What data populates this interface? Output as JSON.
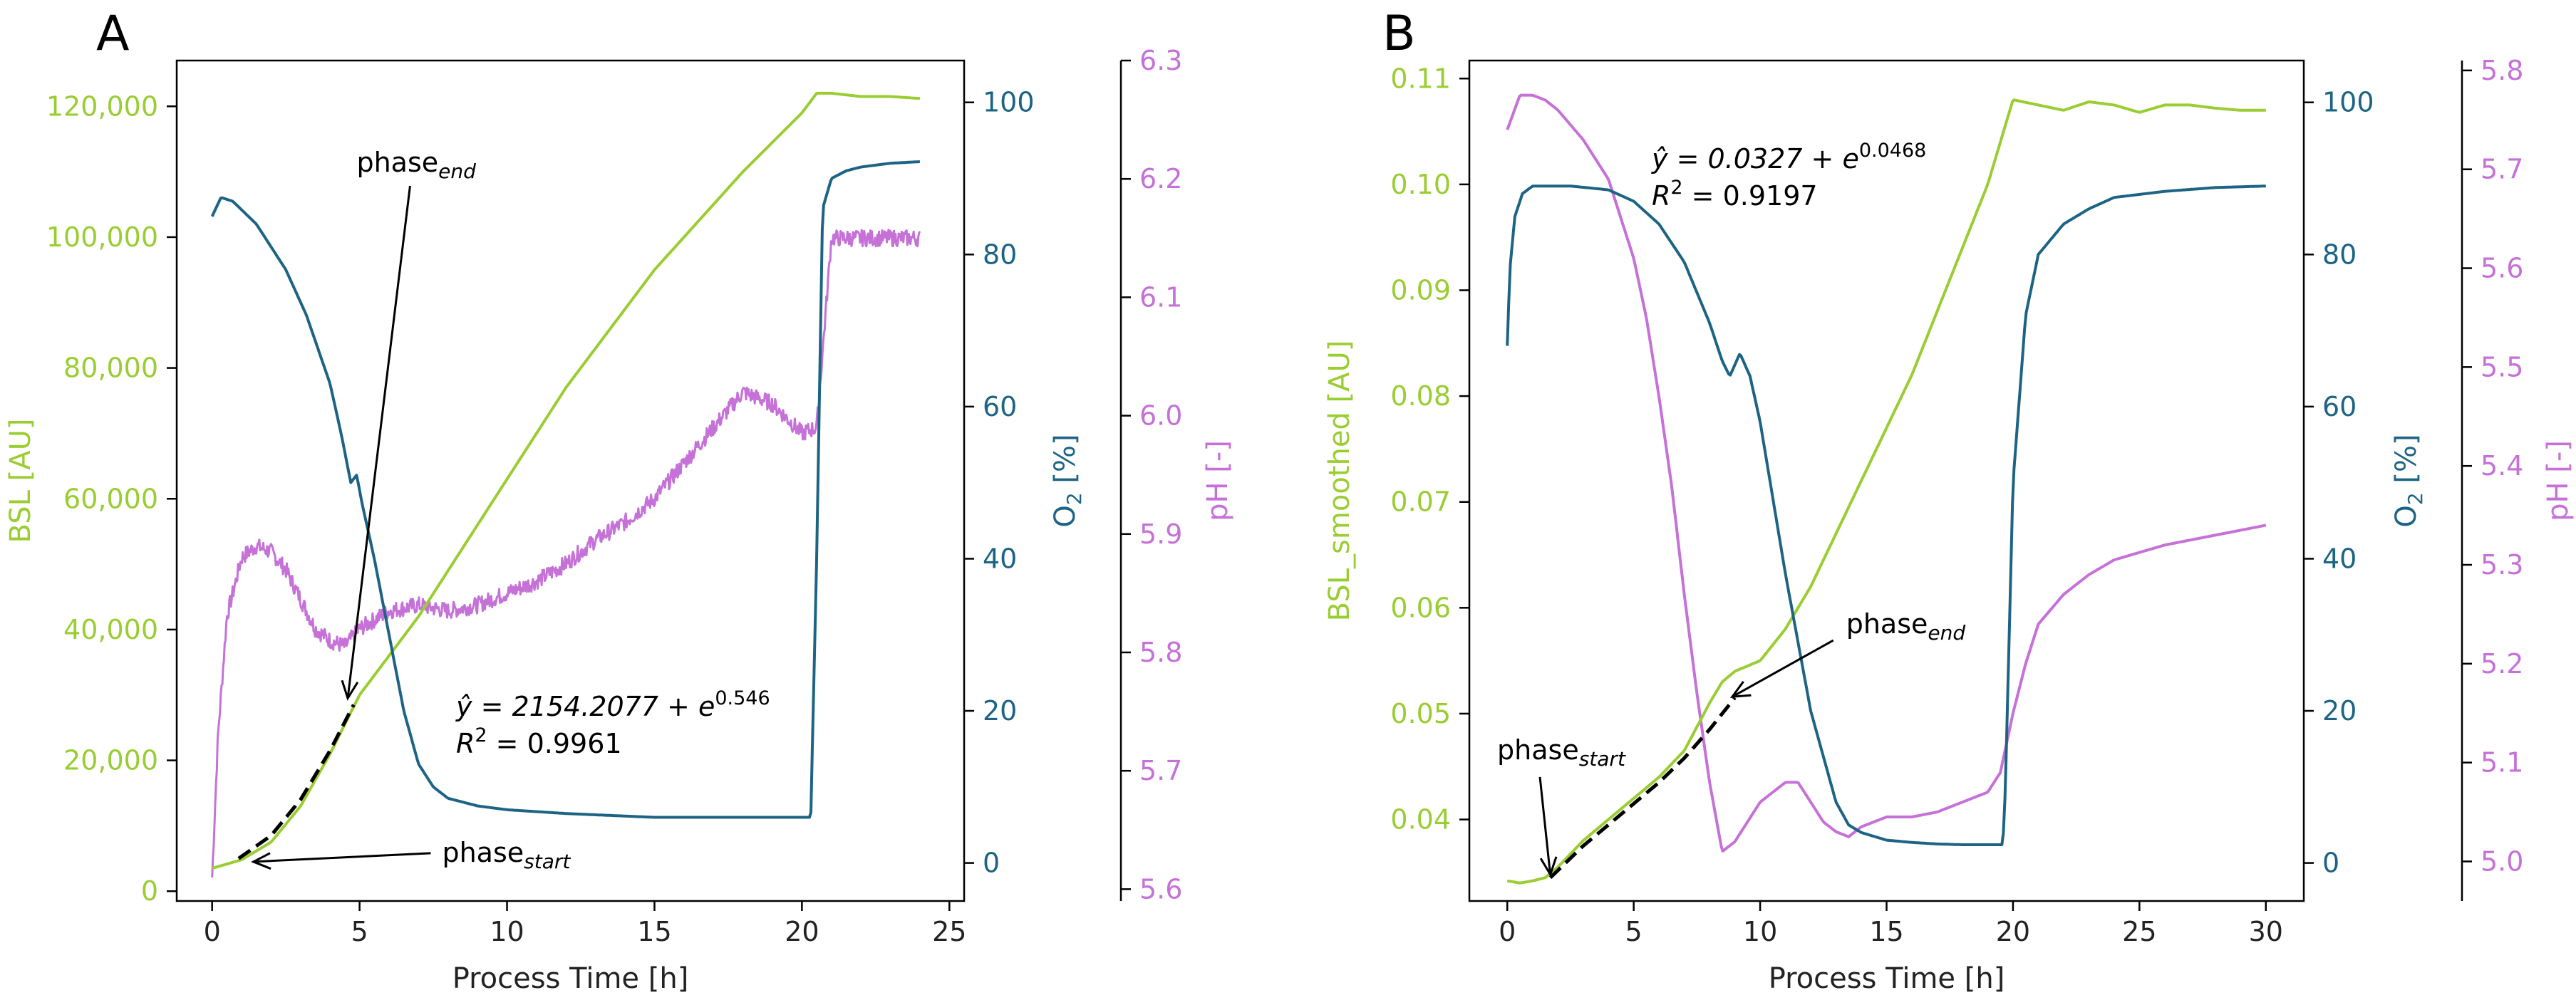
{
  "colors": {
    "bsl": "#9acd32",
    "o2": "#1d6484",
    "ph": "#c571d8",
    "black": "#000000"
  },
  "chart_data": [
    {
      "panel": "A",
      "type": "line",
      "xlabel": "Process Time [h]",
      "xlim": [
        -1.2,
        25.5
      ],
      "xticks": [
        0,
        5,
        10,
        15,
        20,
        25
      ],
      "axes": {
        "bsl": {
          "label": "BSL [AU]",
          "lim": [
            -1500,
            127000
          ],
          "ticks": [
            0,
            20000,
            40000,
            60000,
            80000,
            100000,
            120000
          ],
          "tick_labels": [
            "0",
            "20,000",
            "40,000",
            "60,000",
            "80,000",
            "100,000",
            "120,000"
          ]
        },
        "o2": {
          "label_main": "O",
          "label_sub": "2",
          "label_tail": " [%]",
          "lim": [
            -5,
            105.5
          ],
          "ticks": [
            0,
            20,
            40,
            60,
            80,
            100
          ],
          "tick_labels": [
            "0",
            "20",
            "40",
            "60",
            "80",
            "100"
          ]
        },
        "ph": {
          "label": "pH [-]",
          "lim": [
            5.59,
            6.3
          ],
          "ticks": [
            5.6,
            5.7,
            5.8,
            5.9,
            6.0,
            6.1,
            6.2,
            6.3
          ],
          "tick_labels": [
            "5.6",
            "5.7",
            "5.8",
            "5.9",
            "6.0",
            "6.1",
            "6.2",
            "6.3"
          ]
        }
      },
      "series": [
        {
          "axis": "bsl",
          "color": "bsl",
          "x": [
            0,
            1,
            2,
            3,
            4,
            5,
            6,
            7,
            8,
            9,
            10,
            11,
            12,
            13,
            14,
            15,
            16,
            17,
            18,
            19,
            20,
            20.5,
            21,
            22,
            23,
            24
          ],
          "y": [
            3500,
            4800,
            7500,
            13000,
            21000,
            30000,
            36000,
            42000,
            49000,
            56000,
            63000,
            70000,
            77000,
            83000,
            89000,
            95000,
            100000,
            105000,
            110000,
            114500,
            119000,
            122000,
            122000,
            121500,
            121500,
            121200
          ],
          "noise": 0
        },
        {
          "axis": "o2",
          "color": "o2",
          "x": [
            0,
            0.3,
            0.7,
            1.5,
            2.5,
            3.2,
            4.0,
            4.4,
            4.7,
            4.9,
            5.1,
            5.5,
            6.0,
            6.5,
            7.0,
            7.5,
            8.0,
            9,
            10,
            12,
            15,
            18,
            20.3,
            20.5,
            20.7,
            21,
            21.5,
            22,
            23,
            24
          ],
          "y": [
            85,
            87.5,
            87,
            84,
            78,
            72,
            63,
            56,
            50,
            51,
            47,
            40,
            30,
            20,
            13,
            10,
            8.5,
            7.5,
            7,
            6.5,
            6,
            6,
            6,
            40,
            86,
            90,
            91,
            91.5,
            92,
            92.2
          ],
          "noise": 0
        },
        {
          "axis": "ph",
          "color": "ph",
          "x": [
            0,
            0.2,
            0.5,
            1.0,
            1.5,
            2.0,
            2.5,
            3,
            3.5,
            4,
            4.5,
            5,
            6,
            7,
            8,
            9,
            10,
            11,
            12,
            13,
            14,
            15,
            16,
            17,
            18,
            19,
            20,
            20.5,
            21,
            22,
            23,
            24
          ],
          "y": [
            5.61,
            5.73,
            5.83,
            5.88,
            5.89,
            5.885,
            5.87,
            5.845,
            5.82,
            5.81,
            5.805,
            5.82,
            5.835,
            5.84,
            5.835,
            5.84,
            5.85,
            5.86,
            5.875,
            5.895,
            5.91,
            5.93,
            5.96,
            5.99,
            6.02,
            6.01,
            5.985,
            5.99,
            6.15,
            6.15,
            6.15,
            6.15
          ],
          "noise": 0.007
        }
      ],
      "fit": {
        "axis": "bsl",
        "x": [
          0.9,
          2,
          3,
          4,
          4.8
        ],
        "y": [
          5000,
          8500,
          14000,
          21500,
          28500
        ]
      },
      "annotations": [
        {
          "key": "phase_end",
          "text": "phase",
          "sub": "end",
          "text_x": 4.9,
          "text_y": 110000,
          "arrow_x": 4.6,
          "arrow_y": 29500
        },
        {
          "key": "phase_start",
          "text": "phase",
          "sub": "start",
          "text_x": 7.8,
          "text_y": 4500,
          "arrow_x": 1.4,
          "arrow_y": 4500
        }
      ],
      "equation": {
        "line1": "ŷ = 2154.2077 + e",
        "line1_exp": "0.546",
        "line2": "R",
        "line2_sup": "2",
        "line2_tail": " = 0.9961"
      }
    },
    {
      "panel": "B",
      "type": "line",
      "xlabel": "Process Time [h]",
      "xlim": [
        -1.5,
        31.5
      ],
      "xticks": [
        0,
        5,
        10,
        15,
        20,
        25,
        30
      ],
      "axes": {
        "bsl": {
          "label": "BSL_smoothed [AU]",
          "lim": [
            0.0323,
            0.1117
          ],
          "ticks": [
            0.04,
            0.05,
            0.06,
            0.07,
            0.08,
            0.09,
            0.1,
            0.11
          ],
          "tick_labels": [
            "0.04",
            "0.05",
            "0.06",
            "0.07",
            "0.08",
            "0.09",
            "0.10",
            "0.11"
          ]
        },
        "o2": {
          "label_main": "O",
          "label_sub": "2",
          "label_tail": " [%]",
          "lim": [
            -5,
            105.5
          ],
          "ticks": [
            0,
            20,
            40,
            60,
            80,
            100
          ],
          "tick_labels": [
            "0",
            "20",
            "40",
            "60",
            "80",
            "100"
          ]
        },
        "ph": {
          "label": "pH [-]",
          "lim": [
            4.96,
            5.81
          ],
          "ticks": [
            5.0,
            5.1,
            5.2,
            5.3,
            5.4,
            5.5,
            5.6,
            5.7,
            5.8
          ],
          "tick_labels": [
            "5.0",
            "5.1",
            "5.2",
            "5.3",
            "5.4",
            "5.5",
            "5.6",
            "5.7",
            "5.8"
          ]
        }
      },
      "series": [
        {
          "axis": "bsl",
          "color": "bsl",
          "x": [
            0,
            0.5,
            1,
            1.5,
            2,
            3,
            4,
            5,
            6,
            7,
            8,
            8.5,
            9,
            10,
            11,
            12,
            13,
            14,
            15,
            16,
            17,
            18,
            19,
            19.5,
            20,
            21,
            22,
            23,
            24,
            25,
            26,
            27,
            28,
            29,
            30
          ],
          "y": [
            0.0342,
            0.034,
            0.0342,
            0.0345,
            0.0355,
            0.038,
            0.04,
            0.042,
            0.044,
            0.0465,
            0.051,
            0.053,
            0.054,
            0.055,
            0.058,
            0.062,
            0.067,
            0.072,
            0.077,
            0.082,
            0.088,
            0.094,
            0.1,
            0.104,
            0.108,
            0.1075,
            0.107,
            0.1078,
            0.1075,
            0.1068,
            0.1075,
            0.1075,
            0.1072,
            0.107,
            0.107
          ],
          "noise": 0
        },
        {
          "axis": "o2",
          "color": "o2",
          "x": [
            0,
            0.1,
            0.3,
            0.6,
            1.0,
            1.5,
            2.5,
            4,
            5,
            6,
            7,
            7.5,
            8,
            8.5,
            8.8,
            9.2,
            9.6,
            10,
            10.5,
            11,
            12,
            13,
            13.5,
            14,
            15,
            16,
            17,
            18,
            19,
            19.6,
            19.7,
            20,
            20.5,
            21,
            22,
            23,
            24,
            26,
            28,
            30
          ],
          "y": [
            68,
            78,
            85,
            88,
            89,
            89,
            89,
            88.5,
            87,
            84,
            79,
            75,
            71,
            66,
            64,
            67,
            64,
            58,
            48,
            38,
            20,
            8,
            5,
            4,
            3,
            2.7,
            2.5,
            2.4,
            2.4,
            2.4,
            10,
            50,
            72,
            80,
            84,
            86,
            87.5,
            88.3,
            88.8,
            89
          ],
          "noise": 0
        },
        {
          "axis": "ph",
          "color": "ph",
          "x": [
            0,
            0.5,
            1,
            1.5,
            2,
            3,
            4,
            5,
            5.5,
            6,
            6.5,
            7,
            7.5,
            8,
            8.5,
            9,
            9.5,
            10,
            10.5,
            11,
            11.5,
            12,
            12.5,
            13,
            13.5,
            14,
            15,
            16,
            17,
            18,
            18.5,
            19,
            19.5,
            20,
            20.5,
            21,
            22,
            23,
            24,
            26,
            28,
            30
          ],
          "y": [
            5.74,
            5.775,
            5.775,
            5.77,
            5.76,
            5.73,
            5.69,
            5.61,
            5.55,
            5.47,
            5.38,
            5.27,
            5.17,
            5.08,
            5.01,
            5.02,
            5.04,
            5.06,
            5.07,
            5.08,
            5.08,
            5.06,
            5.04,
            5.03,
            5.025,
            5.035,
            5.045,
            5.045,
            5.05,
            5.06,
            5.065,
            5.07,
            5.09,
            5.15,
            5.2,
            5.24,
            5.27,
            5.29,
            5.305,
            5.32,
            5.33,
            5.34
          ],
          "noise": 0
        }
      ],
      "fit": {
        "axis": "bsl",
        "x": [
          1.7,
          3,
          4,
          5,
          6,
          7,
          8,
          9
        ],
        "y": [
          0.0345,
          0.0375,
          0.0395,
          0.0415,
          0.0435,
          0.0458,
          0.0485,
          0.0515
        ]
      },
      "annotations": [
        {
          "key": "phase_end",
          "text": "phase",
          "sub": "end",
          "text_x": 13.4,
          "text_y": 0.0576,
          "arrow_x": 8.9,
          "arrow_y": 0.0516
        },
        {
          "key": "phase_start",
          "text": "phase",
          "sub": "start",
          "text_x": -0.4,
          "text_y": 0.0457,
          "arrow_x": 1.7,
          "arrow_y": 0.0348
        }
      ],
      "equation": {
        "line1": "ŷ = 0.0327 + e",
        "line1_exp": "0.0468",
        "line2": "R",
        "line2_sup": "2",
        "line2_tail": " = 0.9197"
      }
    }
  ]
}
